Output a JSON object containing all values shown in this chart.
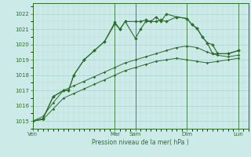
{
  "xlabel": "Pression niveau de la mer( hPa )",
  "bg_color": "#cceae8",
  "grid_color_major": "#aad4d0",
  "grid_color_minor": "#bddbd8",
  "line_color": "#2d6e2d",
  "ylim": [
    1014.5,
    1022.7
  ],
  "yticks": [
    1015,
    1016,
    1017,
    1018,
    1019,
    1020,
    1021,
    1022
  ],
  "day_labels": [
    "Ven",
    "Mar",
    "Sam",
    "Dim",
    "Lun"
  ],
  "day_positions": [
    0,
    8,
    10,
    15,
    20
  ],
  "xlim": [
    0,
    21
  ],
  "series1_x": [
    0,
    1,
    2,
    3,
    3.5,
    4,
    5,
    6,
    7,
    8,
    8.5,
    9,
    10,
    10.5,
    11,
    11.5,
    12,
    12.5,
    13,
    14,
    15,
    15.5,
    16,
    16.5,
    17,
    17.5,
    18,
    19,
    20
  ],
  "series1_y": [
    1015.0,
    1015.15,
    1016.6,
    1017.0,
    1017.0,
    1018.0,
    1019.0,
    1019.6,
    1020.2,
    1021.35,
    1021.0,
    1021.5,
    1021.5,
    1021.5,
    1021.6,
    1021.5,
    1021.8,
    1021.5,
    1022.0,
    1021.8,
    1021.7,
    1021.3,
    1021.05,
    1020.5,
    1020.1,
    1020.0,
    1019.4,
    1019.4,
    1019.6
  ],
  "series2_x": [
    0,
    1,
    2,
    3,
    3.5,
    4,
    5,
    6,
    7,
    8,
    8.5,
    9,
    10,
    10.5,
    11,
    11.5,
    12,
    12.5,
    13,
    14,
    15,
    15.5,
    16,
    16.5,
    17,
    17.5,
    18,
    19,
    20
  ],
  "series2_y": [
    1015.0,
    1015.15,
    1016.6,
    1017.0,
    1017.0,
    1018.0,
    1019.0,
    1019.6,
    1020.2,
    1021.45,
    1021.0,
    1021.5,
    1020.4,
    1021.0,
    1021.5,
    1021.5,
    1021.5,
    1021.6,
    1021.5,
    1021.8,
    1021.7,
    1021.3,
    1021.05,
    1020.5,
    1020.1,
    1019.4,
    1019.4,
    1019.4,
    1019.6
  ],
  "series3_x": [
    0,
    1,
    2,
    3,
    4,
    5,
    6,
    7,
    8,
    9,
    10,
    11,
    12,
    13,
    14,
    15,
    16,
    17,
    18,
    19,
    20
  ],
  "series3_y": [
    1015.0,
    1015.3,
    1016.2,
    1017.0,
    1017.3,
    1017.6,
    1017.9,
    1018.2,
    1018.5,
    1018.8,
    1019.0,
    1019.2,
    1019.4,
    1019.6,
    1019.8,
    1019.9,
    1019.8,
    1019.5,
    1019.3,
    1019.2,
    1019.3
  ],
  "series4_x": [
    0,
    1,
    2,
    3,
    4,
    5,
    6,
    7,
    8,
    9,
    10,
    11,
    12,
    13,
    14,
    15,
    16,
    17,
    18,
    19,
    20
  ],
  "series4_y": [
    1015.0,
    1015.1,
    1015.8,
    1016.5,
    1016.8,
    1017.1,
    1017.4,
    1017.7,
    1018.0,
    1018.3,
    1018.5,
    1018.7,
    1018.9,
    1019.0,
    1019.1,
    1019.0,
    1018.9,
    1018.8,
    1018.9,
    1019.0,
    1019.1
  ]
}
